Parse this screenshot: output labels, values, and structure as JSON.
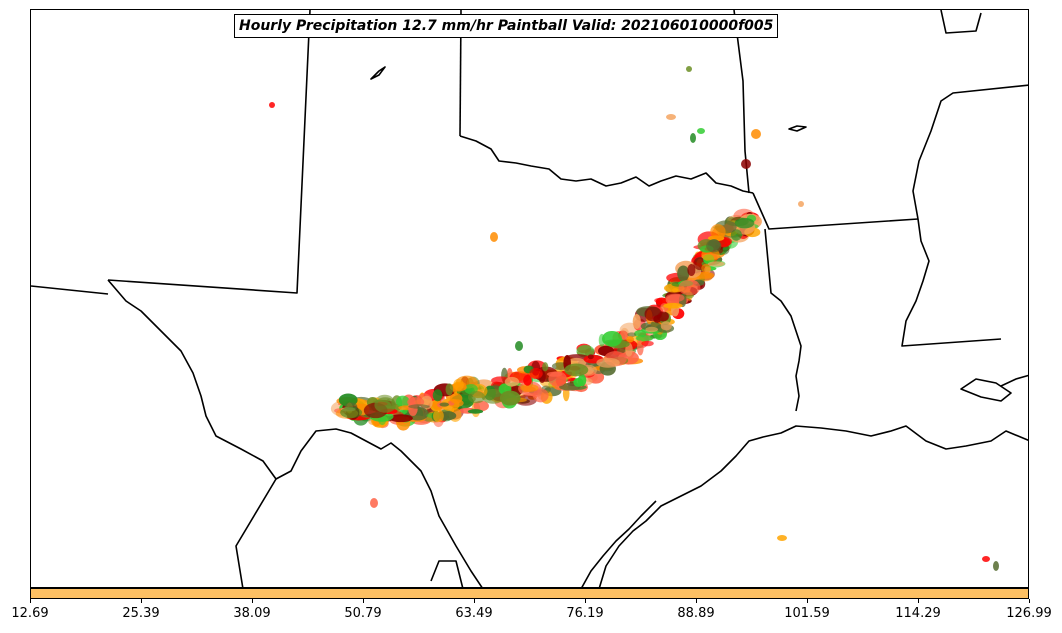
{
  "title": "Hourly Precipitation 12.7 mm/hr Paintball Valid: 202106010000f005",
  "colors": {
    "colorbar_fill": "#fdc063",
    "boundary": "#000000",
    "member_colors": [
      "#ff0000",
      "#ff8c00",
      "#f4a460",
      "#228b22",
      "#32cd32",
      "#8b0000",
      "#6b8e23",
      "#ff6347",
      "#ffa500",
      "#556b2f"
    ]
  },
  "map": {
    "type": "precipitation paintball map",
    "region": "Southern Plains (Texas, Oklahoma, Louisiana)",
    "features": [
      "state-borders",
      "coastline",
      "international-border"
    ]
  },
  "colorbar": {
    "ticks": [
      "12.69",
      "25.39",
      "38.09",
      "50.79",
      "63.49",
      "76.19",
      "88.89",
      "101.59",
      "114.29",
      "126.99"
    ]
  }
}
